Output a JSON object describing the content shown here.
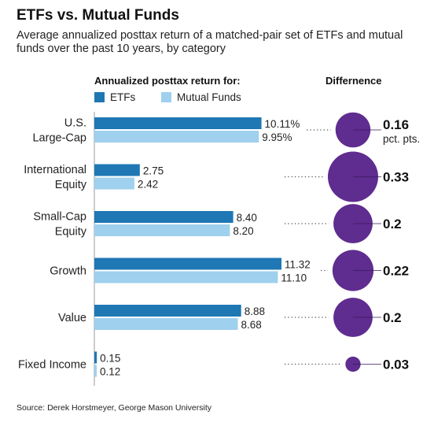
{
  "title": "ETFs vs. Mutual Funds",
  "subtitle": "Average annualized posttax return of a matched-pair set of ETFs and mutual funds over the past 10 years, by category",
  "returns_header": "Annualized posttax return for:",
  "difference_header": "Differnence",
  "source": "Source: Derek Horstmeyer, George Mason University",
  "colors": {
    "etf": "#1f77b4",
    "mutual": "#9fd0ee",
    "circle": "#5f2c8f",
    "dots": "#555555"
  },
  "chart_data": {
    "type": "bar",
    "orientation": "horizontal",
    "categories": [
      [
        "U.S.",
        "Large-Cap"
      ],
      [
        "International",
        "Equity"
      ],
      [
        "Small-Cap",
        "Equity"
      ],
      [
        "Growth"
      ],
      [
        "Value"
      ],
      [
        "Fixed Income"
      ]
    ],
    "series": [
      {
        "name": "ETFs",
        "values": [
          10.11,
          2.75,
          8.4,
          11.32,
          8.88,
          0.15
        ],
        "labels": [
          "10.11%",
          "2.75",
          "8.40",
          "11.32",
          "8.88",
          "0.15"
        ]
      },
      {
        "name": "Mutual Funds",
        "values": [
          9.95,
          2.42,
          8.2,
          11.1,
          8.68,
          0.12
        ],
        "labels": [
          "9.95%",
          "2.42",
          "8.20",
          "11.10",
          "8.68",
          "0.12"
        ]
      }
    ],
    "difference": {
      "values": [
        0.16,
        0.33,
        0.2,
        0.22,
        0.2,
        0.03
      ],
      "labels": [
        "0.16",
        "0.33",
        "0.2",
        "0.22",
        "0.2",
        "0.03"
      ],
      "first_unit": "pct. pts."
    },
    "xlim": [
      0,
      11.32
    ]
  }
}
